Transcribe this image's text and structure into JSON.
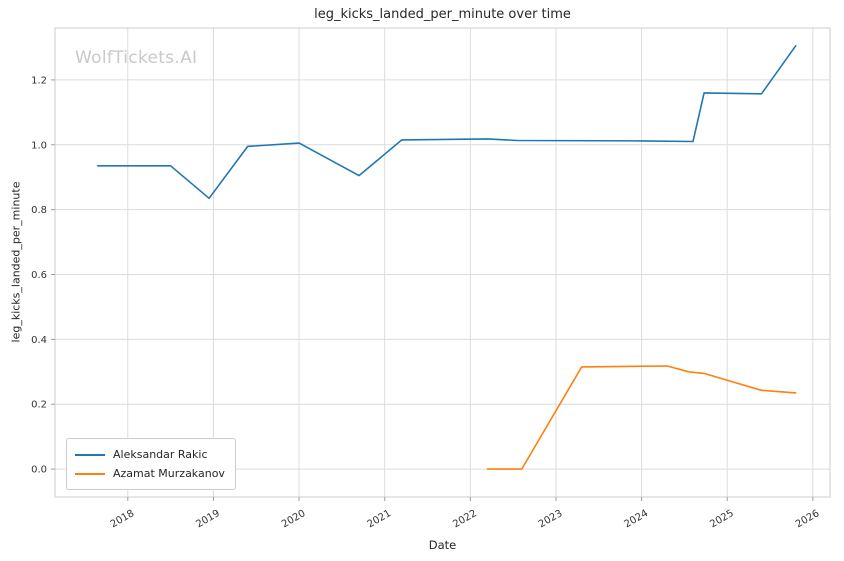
{
  "figure": {
    "watermark": "WolfTickets.AI"
  },
  "chart_data": {
    "type": "line",
    "title": "leg_kicks_landed_per_minute over time",
    "xlabel": "Date",
    "ylabel": "leg_kicks_landed_per_minute",
    "xlim": [
      2017.15,
      2026.2
    ],
    "ylim": [
      -0.086,
      1.36
    ],
    "xticks": [
      2018,
      2019,
      2020,
      2021,
      2022,
      2023,
      2024,
      2025,
      2026
    ],
    "yticks": [
      0.0,
      0.2,
      0.4,
      0.6,
      0.8,
      1.0,
      1.2
    ],
    "grid": true,
    "legend_position": "lower left",
    "series": [
      {
        "name": "Aleksandar Rakic",
        "color": "#1f77b4",
        "x": [
          2017.65,
          2018.5,
          2018.95,
          2019.4,
          2020.0,
          2020.7,
          2021.2,
          2022.2,
          2022.55,
          2024.0,
          2024.6,
          2024.73,
          2025.4,
          2025.8
        ],
        "y": [
          0.935,
          0.935,
          0.835,
          0.995,
          1.005,
          0.905,
          1.015,
          1.018,
          1.013,
          1.012,
          1.01,
          1.16,
          1.157,
          1.305
        ]
      },
      {
        "name": "Azamat Murzakanov",
        "color": "#ff7f0e",
        "x": [
          2022.2,
          2022.6,
          2023.3,
          2024.3,
          2024.55,
          2024.73,
          2025.05,
          2025.4,
          2025.8
        ],
        "y": [
          0.0,
          0.0,
          0.315,
          0.318,
          0.3,
          0.295,
          0.27,
          0.243,
          0.235
        ]
      }
    ]
  }
}
